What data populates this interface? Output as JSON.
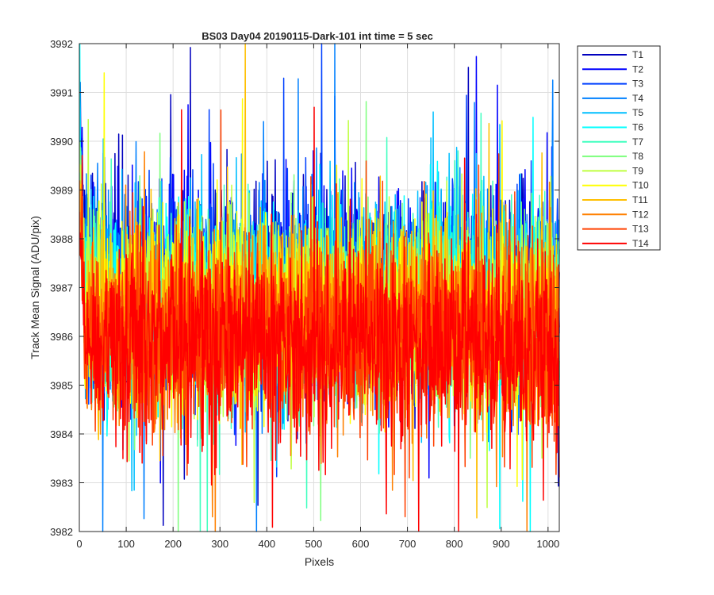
{
  "chart_data": {
    "type": "line",
    "title": "BS03 Day04 20190115-Dark-101 int time = 5 sec",
    "xlabel": "Pixels",
    "ylabel": "Track Mean Signal (ADU/pix)",
    "xlim": [
      0,
      1024
    ],
    "ylim": [
      3982,
      3992
    ],
    "xticks": [
      0,
      100,
      200,
      300,
      400,
      500,
      600,
      700,
      800,
      900,
      1000
    ],
    "yticks": [
      3982,
      3983,
      3984,
      3985,
      3986,
      3987,
      3988,
      3989,
      3990,
      3991,
      3992
    ],
    "grid": true,
    "legend_position": "outside-top-right",
    "series_point_count": 1024,
    "series": [
      {
        "name": "T1",
        "color": "#0000BF",
        "mean": 3987.0,
        "spread": 1.0,
        "edge_start": 3991.9
      },
      {
        "name": "T2",
        "color": "#0000FF",
        "mean": 3987.0,
        "spread": 1.0,
        "edge_start": 3991.4
      },
      {
        "name": "T3",
        "color": "#0040FF",
        "mean": 3986.9,
        "spread": 1.0,
        "edge_start": 3991.1
      },
      {
        "name": "T4",
        "color": "#0080FF",
        "mean": 3986.8,
        "spread": 1.0,
        "edge_start": 3990.9
      },
      {
        "name": "T5",
        "color": "#00BFFF",
        "mean": 3986.8,
        "spread": 1.0,
        "edge_start": 3990.6
      },
      {
        "name": "T6",
        "color": "#00FFFF",
        "mean": 3986.7,
        "spread": 1.0,
        "edge_start": 3990.5
      },
      {
        "name": "T7",
        "color": "#40FFBF",
        "mean": 3986.6,
        "spread": 1.0,
        "edge_start": 3990.3
      },
      {
        "name": "T8",
        "color": "#80FF80",
        "mean": 3986.6,
        "spread": 1.0,
        "edge_start": 3990.2
      },
      {
        "name": "T9",
        "color": "#BFFF40",
        "mean": 3986.5,
        "spread": 1.0,
        "edge_start": 3990.0
      },
      {
        "name": "T10",
        "color": "#FFFF00",
        "mean": 3986.4,
        "spread": 1.0,
        "edge_start": 3989.8
      },
      {
        "name": "T11",
        "color": "#FFBF00",
        "mean": 3986.3,
        "spread": 1.0,
        "edge_start": 3989.5
      },
      {
        "name": "T12",
        "color": "#FF8000",
        "mean": 3986.2,
        "spread": 1.0,
        "edge_start": 3989.2
      },
      {
        "name": "T13",
        "color": "#FF4000",
        "mean": 3986.0,
        "spread": 1.0,
        "edge_start": 3988.8
      },
      {
        "name": "T14",
        "color": "#FF0000",
        "mean": 3985.9,
        "spread": 1.0,
        "edge_start": 3988.5
      }
    ]
  }
}
